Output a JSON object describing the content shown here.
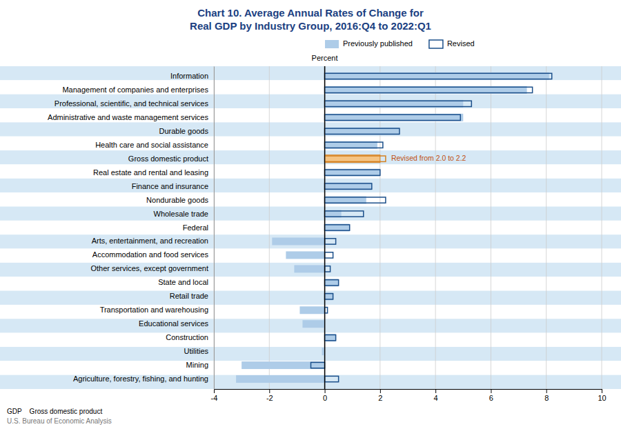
{
  "chart_data": {
    "type": "bar",
    "orientation": "horizontal",
    "title": "Chart 10. Average Annual Rates of Change for",
    "subtitle": "Real GDP by Industry Group, 2016:Q4 to 2022:Q1",
    "xlabel": "Percent",
    "categories": [
      "Information",
      "Management of companies and enterprises",
      "Professional, scientific, and technical services",
      "Administrative and waste management services",
      "Durable goods",
      "Health care and social assistance",
      "Gross domestic product",
      "Real estate and rental and leasing",
      "Finance and insurance",
      "Nondurable goods",
      "Wholesale trade",
      "Federal",
      "Arts, entertainment, and recreation",
      "Accommodation and food services",
      "Other services, except government",
      "State and local",
      "Retail trade",
      "Transportation and warehousing",
      "Educational services",
      "Construction",
      "Utilities",
      "Mining",
      "Agriculture, forestry, fishing, and hunting"
    ],
    "series": [
      {
        "name": "Previously published",
        "color": "#AECCE8",
        "colors": [
          "#AECCE8",
          "#AECCE8",
          "#AECCE8",
          "#AECCE8",
          "#AECCE8",
          "#AECCE8",
          "#F5C484",
          "#AECCE8",
          "#AECCE8",
          "#AECCE8",
          "#AECCE8",
          "#AECCE8",
          "#AECCE8",
          "#AECCE8",
          "#AECCE8",
          "#AECCE8",
          "#AECCE8",
          "#AECCE8",
          "#AECCE8",
          "#AECCE8",
          "#AECCE8",
          "#AECCE8",
          "#AECCE8"
        ],
        "values": [
          8.1,
          7.3,
          5.0,
          5.0,
          2.7,
          1.9,
          2.0,
          2.0,
          1.7,
          1.5,
          0.6,
          0.9,
          -1.9,
          -1.4,
          -1.1,
          0.5,
          0.3,
          -0.9,
          -0.8,
          0.4,
          -0.1,
          -3.0,
          -3.2
        ]
      },
      {
        "name": "Revised",
        "color": "#1B4F8A",
        "colors": [
          "#1B4F8A",
          "#1B4F8A",
          "#1B4F8A",
          "#1B4F8A",
          "#1B4F8A",
          "#1B4F8A",
          "#D48020",
          "#1B4F8A",
          "#1B4F8A",
          "#1B4F8A",
          "#1B4F8A",
          "#1B4F8A",
          "#1B4F8A",
          "#1B4F8A",
          "#1B4F8A",
          "#1B4F8A",
          "#1B4F8A",
          "#1B4F8A",
          "#1B4F8A",
          "#1B4F8A",
          "#1B4F8A",
          "#1B4F8A",
          "#1B4F8A"
        ],
        "values": [
          8.2,
          7.5,
          5.3,
          4.9,
          2.7,
          2.1,
          2.2,
          2.0,
          1.7,
          2.2,
          1.4,
          0.9,
          0.4,
          0.3,
          0.2,
          0.5,
          0.3,
          0.1,
          0.0,
          0.4,
          0.0,
          -0.5,
          0.5
        ]
      }
    ],
    "annotations": [
      {
        "text": "Revised from 2.0 to 2.2",
        "category": "Gross domestic product",
        "color": "#C05010"
      }
    ],
    "xlim": [
      -4,
      10
    ],
    "xticks": [
      -4,
      -2,
      0,
      2,
      4,
      6,
      8,
      10
    ],
    "grid": true,
    "legend": "top",
    "footnote": "GDP    Gross domestic product",
    "source": "U.S. Bureau of Economic Analysis"
  }
}
